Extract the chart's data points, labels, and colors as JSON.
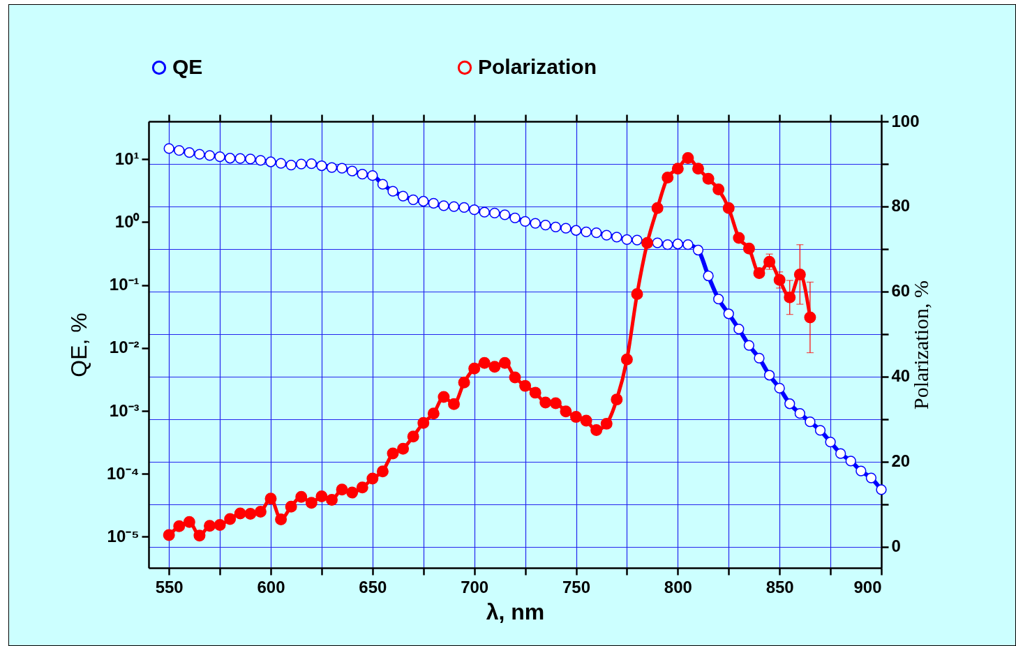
{
  "chart_data": {
    "type": "line",
    "xlabel": "λ, nm",
    "ylabel": "QE, %",
    "y2label": "Polarization,  %",
    "xlim": [
      540,
      900
    ],
    "xticks": [
      550,
      {
        "value": 575,
        "label": null
      },
      600,
      {
        "value": 625,
        "label": null
      },
      650,
      {
        "value": 675,
        "label": null
      },
      700,
      {
        "value": 725,
        "label": null
      },
      750,
      {
        "value": 775,
        "label": null
      },
      800,
      {
        "value": 825,
        "label": null
      },
      850,
      {
        "value": 875,
        "label": null
      },
      900
    ],
    "ylim": [
      3.2e-06,
      40
    ],
    "yticks": [
      {
        "value": 1e-05,
        "label": "10⁻⁵"
      },
      {
        "value": 0.0001,
        "label": "10⁻⁴"
      },
      {
        "value": 0.001,
        "label": "10⁻³"
      },
      {
        "value": 0.01,
        "label": "10⁻²"
      },
      {
        "value": 0.1,
        "label": "10⁻¹"
      },
      {
        "value": 1,
        "label": "10⁰"
      },
      {
        "value": 10,
        "label": "10¹"
      }
    ],
    "y2lim": [
      -5,
      100
    ],
    "y2ticks": [
      0,
      {
        "value": 10,
        "label": null
      },
      20,
      {
        "value": 30,
        "label": null
      },
      40,
      {
        "value": 50,
        "label": null
      },
      60,
      {
        "value": 70,
        "label": null
      },
      80,
      {
        "value": 90,
        "label": null
      },
      100
    ],
    "log": "y",
    "grid": true,
    "legend": "top",
    "marker": "circle",
    "line_style": "solid",
    "series": [
      {
        "name": "QE",
        "color": "#0000ff",
        "x": [
          550,
          555,
          560,
          565,
          570,
          575,
          580,
          585,
          590,
          595,
          600,
          605,
          610,
          615,
          620,
          625,
          630,
          635,
          640,
          645,
          650,
          655,
          660,
          665,
          670,
          675,
          680,
          685,
          690,
          695,
          700,
          705,
          710,
          715,
          720,
          725,
          730,
          735,
          740,
          745,
          750,
          755,
          760,
          765,
          770,
          775,
          780,
          785,
          790,
          795,
          800,
          805,
          810,
          815,
          820,
          825,
          830,
          835,
          840,
          845,
          850,
          855,
          860,
          865,
          870,
          875,
          880,
          885,
          890,
          895,
          900
        ],
        "values": [
          14.8,
          13.8,
          12.8,
          12.0,
          11.5,
          11.0,
          10.4,
          10.3,
          10.1,
          9.6,
          9.1,
          8.6,
          8.1,
          8.4,
          8.5,
          7.9,
          7.4,
          7.2,
          6.5,
          5.8,
          5.5,
          4.0,
          3.1,
          2.6,
          2.27,
          2.15,
          2.0,
          1.83,
          1.77,
          1.71,
          1.58,
          1.44,
          1.4,
          1.31,
          1.17,
          1.03,
          0.96,
          0.9,
          0.84,
          0.8,
          0.74,
          0.7,
          0.68,
          0.62,
          0.58,
          0.53,
          0.52,
          0.47,
          0.47,
          0.44,
          0.45,
          0.44,
          0.36,
          0.14,
          0.06,
          0.035,
          0.02,
          0.011,
          0.0069,
          0.0037,
          0.0023,
          0.0013,
          0.00091,
          0.00067,
          0.00049,
          0.00032,
          0.00021,
          0.00016,
          0.000111,
          8.6e-05,
          5.6e-05
        ]
      },
      {
        "name": "Polarization",
        "color": "#ff0000",
        "axis": "y2",
        "x": [
          550,
          555,
          560,
          565,
          570,
          575,
          580,
          585,
          590,
          595,
          600,
          605,
          610,
          615,
          620,
          625,
          630,
          635,
          640,
          645,
          650,
          655,
          660,
          665,
          670,
          675,
          680,
          685,
          690,
          695,
          700,
          705,
          710,
          715,
          720,
          725,
          730,
          735,
          740,
          745,
          750,
          755,
          760,
          765,
          770,
          775,
          780,
          785,
          790,
          795,
          800,
          805,
          810,
          815,
          820,
          825,
          830,
          835,
          840,
          845,
          850,
          855,
          860,
          865
        ],
        "values": [
          2.7,
          4.8,
          5.8,
          2.6,
          4.9,
          5.1,
          6.5,
          7.8,
          7.7,
          8.2,
          11.3,
          6.4,
          9.4,
          11.7,
          10.3,
          11.8,
          11.0,
          13.4,
          12.7,
          13.9,
          16.0,
          17.7,
          21.9,
          23.0,
          25.9,
          29.1,
          31.3,
          35.2,
          33.5,
          38.6,
          41.9,
          43.2,
          42.3,
          43.2,
          39.8,
          37.8,
          36.2,
          33.9,
          33.7,
          31.8,
          30.5,
          29.6,
          27.4,
          28.9,
          34.6,
          44.0,
          59.4,
          71.4,
          79.6,
          86.8,
          88.9,
          91.4,
          88.9,
          86.5,
          84.0,
          79.6,
          72.6,
          70.1,
          64.3,
          67.0,
          62.7,
          58.6,
          64.0,
          53.9
        ],
        "errors": [
          null,
          null,
          null,
          null,
          null,
          null,
          null,
          null,
          null,
          null,
          null,
          null,
          null,
          null,
          null,
          null,
          null,
          null,
          null,
          null,
          null,
          null,
          null,
          null,
          null,
          null,
          null,
          null,
          null,
          null,
          null,
          null,
          null,
          null,
          null,
          null,
          null,
          null,
          null,
          null,
          null,
          null,
          null,
          null,
          null,
          null,
          null,
          null,
          null,
          null,
          null,
          null,
          null,
          null,
          null,
          null,
          null,
          null,
          null,
          1.8,
          1.9,
          4,
          7,
          8.3
        ]
      }
    ]
  }
}
